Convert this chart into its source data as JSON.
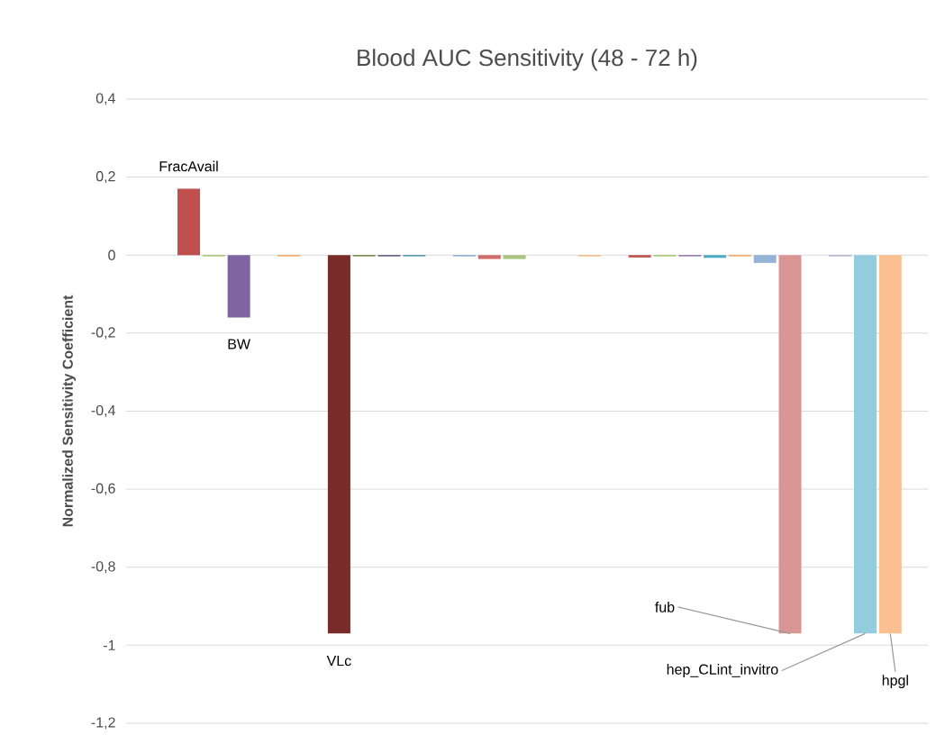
{
  "chart_data": {
    "type": "bar",
    "title": "Blood AUC Sensitivity (48 - 72 h)",
    "ylabel": "Normalized Sensitivity Coefficient",
    "categories": [
      null,
      null,
      null,
      null,
      null,
      null,
      null,
      null,
      null,
      null,
      null,
      null,
      null,
      null,
      null,
      null,
      null,
      null,
      null,
      null,
      null,
      null,
      null,
      null,
      null,
      null,
      null,
      null,
      null,
      null,
      null,
      null
    ],
    "values": [
      null,
      null,
      0.17,
      -0.003,
      -0.16,
      null,
      -0.003,
      null,
      -0.97,
      -0.003,
      -0.003,
      -0.003,
      null,
      -0.003,
      -0.01,
      -0.01,
      null,
      null,
      -0.003,
      null,
      -0.006,
      -0.003,
      -0.003,
      -0.007,
      -0.003,
      -0.02,
      -0.97,
      null,
      -0.003,
      -0.97,
      -0.97,
      null
    ],
    "colors": [
      "#c0504d",
      "#c0504d",
      "#c0504d",
      "#9bbb59",
      "#8064a2",
      "#4bacc6",
      "#f79646",
      "#4f81bd",
      "#772c2a",
      "#5f7530",
      "#4d3b62",
      "#31859c",
      "#4f81bd",
      "#7ba0cd",
      "#d16c6a",
      "#a9c47f",
      "#4bacc6",
      "#f79646",
      "#f9b074",
      "#4f81bd",
      "#c0504d",
      "#9bbb59",
      "#8064a2",
      "#4bacc6",
      "#f79646",
      "#95b3d7",
      "#d99694",
      "#c3d69b",
      "#b3a2c7",
      "#93cddd",
      "#fac090",
      "#4f81bd"
    ],
    "ylim": [
      -1.2,
      0.4
    ],
    "yticks": [
      {
        "value": -1.2,
        "label": "-1,2"
      },
      {
        "value": -1.0,
        "label": "-1"
      },
      {
        "value": -0.8,
        "label": "-0,8"
      },
      {
        "value": -0.6,
        "label": "-0,6"
      },
      {
        "value": -0.4,
        "label": "-0,4"
      },
      {
        "value": -0.2,
        "label": "-0,2"
      },
      {
        "value": 0,
        "label": "0"
      },
      {
        "value": 0.2,
        "label": "0,2"
      },
      {
        "value": 0.4,
        "label": "0,4"
      }
    ],
    "grid": "y",
    "annotations": [
      "FracAvail",
      "BW",
      "VLc",
      "fub",
      "hep_CLint_invitro",
      "hpgl"
    ]
  }
}
